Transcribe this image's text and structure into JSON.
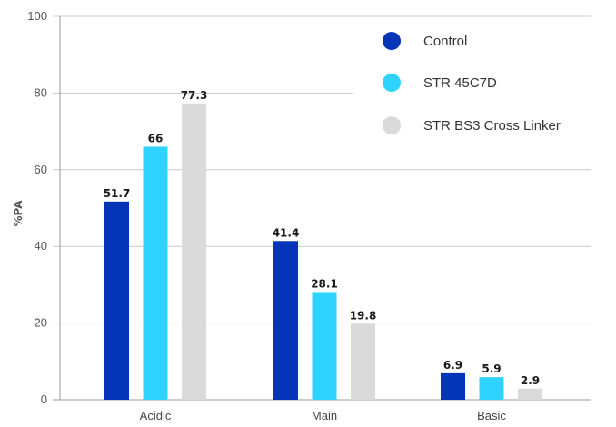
{
  "chart_data": {
    "type": "bar",
    "categories": [
      "Acidic",
      "Main",
      "Basic"
    ],
    "series": [
      {
        "name": "Control",
        "values": [
          51.7,
          41.4,
          6.9
        ],
        "color": "#0434b8"
      },
      {
        "name": "STR 45C7D",
        "values": [
          66,
          28.1,
          5.9
        ],
        "color": "#2fd3ff"
      },
      {
        "name": "STR BS3 Cross Linker",
        "values": [
          77.3,
          19.8,
          2.9
        ],
        "color": "#dadada"
      }
    ],
    "value_labels": [
      [
        "51.7",
        "41.4",
        "6.9"
      ],
      [
        "66",
        "28.1",
        "5.9"
      ],
      [
        "77.3",
        "19.8",
        "2.9"
      ]
    ],
    "yticks": [
      "0",
      "20",
      "40",
      "60",
      "80",
      "100"
    ],
    "ylim": [
      0,
      100
    ],
    "ylabel": "%PA",
    "xlabel": "",
    "grid": true,
    "legend_position": "top-right"
  }
}
